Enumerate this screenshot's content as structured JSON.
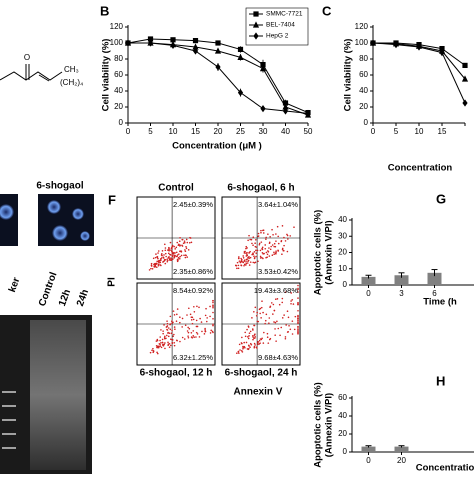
{
  "figure": {
    "molecule": {
      "atoms": [
        "O",
        "CH₃",
        "(CH₂)₄"
      ]
    },
    "microscopy": {
      "title": "6-shogaol"
    },
    "gel": {
      "lanes": [
        "ker",
        "Control",
        "12h",
        "24h"
      ]
    },
    "flow": {
      "label": "F",
      "x_label": "Annexin V",
      "y_label": "PI",
      "panels": [
        {
          "title": "Control",
          "upper_right": "2.45±0.39%",
          "lower_right": "2.35±0.86%"
        },
        {
          "title": "6-shogaol, 6 h",
          "upper_right": "3.64±1.04%",
          "lower_right": "3.53±0.42%"
        },
        {
          "title": "6-shogaol, 12 h",
          "upper_right": "8.54±0.92%",
          "lower_right": "6.32±1.25%"
        },
        {
          "title": "6-shogaol, 24 h",
          "upper_right": "19.43±3.68%",
          "lower_right": "9.68±4.63%"
        }
      ]
    }
  },
  "chart_data": [
    {
      "type": "line",
      "label": "B",
      "y_label": [
        "Cell viability (%)"
      ],
      "x_label": "Concentration (μM )",
      "categories": [
        "0",
        "5",
        "10",
        "15",
        "20",
        "25",
        "30",
        "40",
        "50"
      ],
      "ylim": [
        0,
        120
      ],
      "yticks": [
        0,
        20,
        40,
        60,
        80,
        100,
        120
      ],
      "legend": "upper right",
      "series": [
        {
          "name": "SMMC-7721",
          "color": "#000000",
          "marker": "square",
          "values": [
            100,
            105,
            104,
            103,
            100,
            92,
            73,
            25,
            13
          ],
          "errors": [
            2,
            2,
            2,
            2,
            3,
            4,
            6,
            4,
            2
          ]
        },
        {
          "name": "BEL-7404",
          "color": "#000000",
          "marker": "triangle",
          "values": [
            100,
            100,
            98,
            95,
            90,
            82,
            68,
            20,
            10
          ],
          "errors": [
            2,
            2,
            2,
            3,
            3,
            4,
            5,
            4,
            2
          ]
        },
        {
          "name": "HepG 2",
          "color": "#000000",
          "marker": "diamond",
          "values": [
            100,
            100,
            97,
            90,
            70,
            38,
            18,
            15,
            12
          ],
          "errors": [
            2,
            2,
            3,
            3,
            5,
            5,
            3,
            2,
            2
          ]
        }
      ]
    },
    {
      "type": "line",
      "label": "C",
      "y_label": [
        "Cell viability (%)"
      ],
      "x_label": "Concentration",
      "categories": [
        "0",
        "5",
        "10",
        "15",
        null
      ],
      "ylim": [
        0,
        120
      ],
      "yticks": [
        0,
        20,
        40,
        60,
        80,
        100,
        120
      ],
      "series": [
        {
          "color": "#000000",
          "marker": "square",
          "values": [
            100,
            100,
            98,
            93,
            72
          ]
        },
        {
          "color": "#000000",
          "marker": "triangle",
          "values": [
            100,
            99,
            96,
            90,
            55
          ]
        },
        {
          "color": "#000000",
          "marker": "diamond",
          "values": [
            100,
            98,
            95,
            88,
            25
          ]
        }
      ]
    },
    {
      "type": "bar",
      "label": "G",
      "y_label": [
        "Apoptotic cells (%)",
        "(Annexin V/PI)"
      ],
      "x_label": "Time (h",
      "categories": [
        "0",
        "3",
        "6"
      ],
      "values": [
        5,
        6,
        7.5
      ],
      "errors": [
        1,
        1.5,
        2
      ],
      "color": "#808080",
      "ylim": [
        0,
        40
      ],
      "yticks": [
        0,
        10,
        20,
        30,
        40
      ]
    },
    {
      "type": "bar",
      "label": "H",
      "y_label": [
        "Apoptotic cells (%)",
        "(Annexin V/PI)"
      ],
      "x_label": "Concentratio",
      "categories": [
        "0",
        "20"
      ],
      "values": [
        6,
        6
      ],
      "errors": [
        1,
        1
      ],
      "color": "#808080",
      "ylim": [
        0,
        60
      ],
      "yticks": [
        0,
        20,
        40,
        60
      ]
    }
  ]
}
